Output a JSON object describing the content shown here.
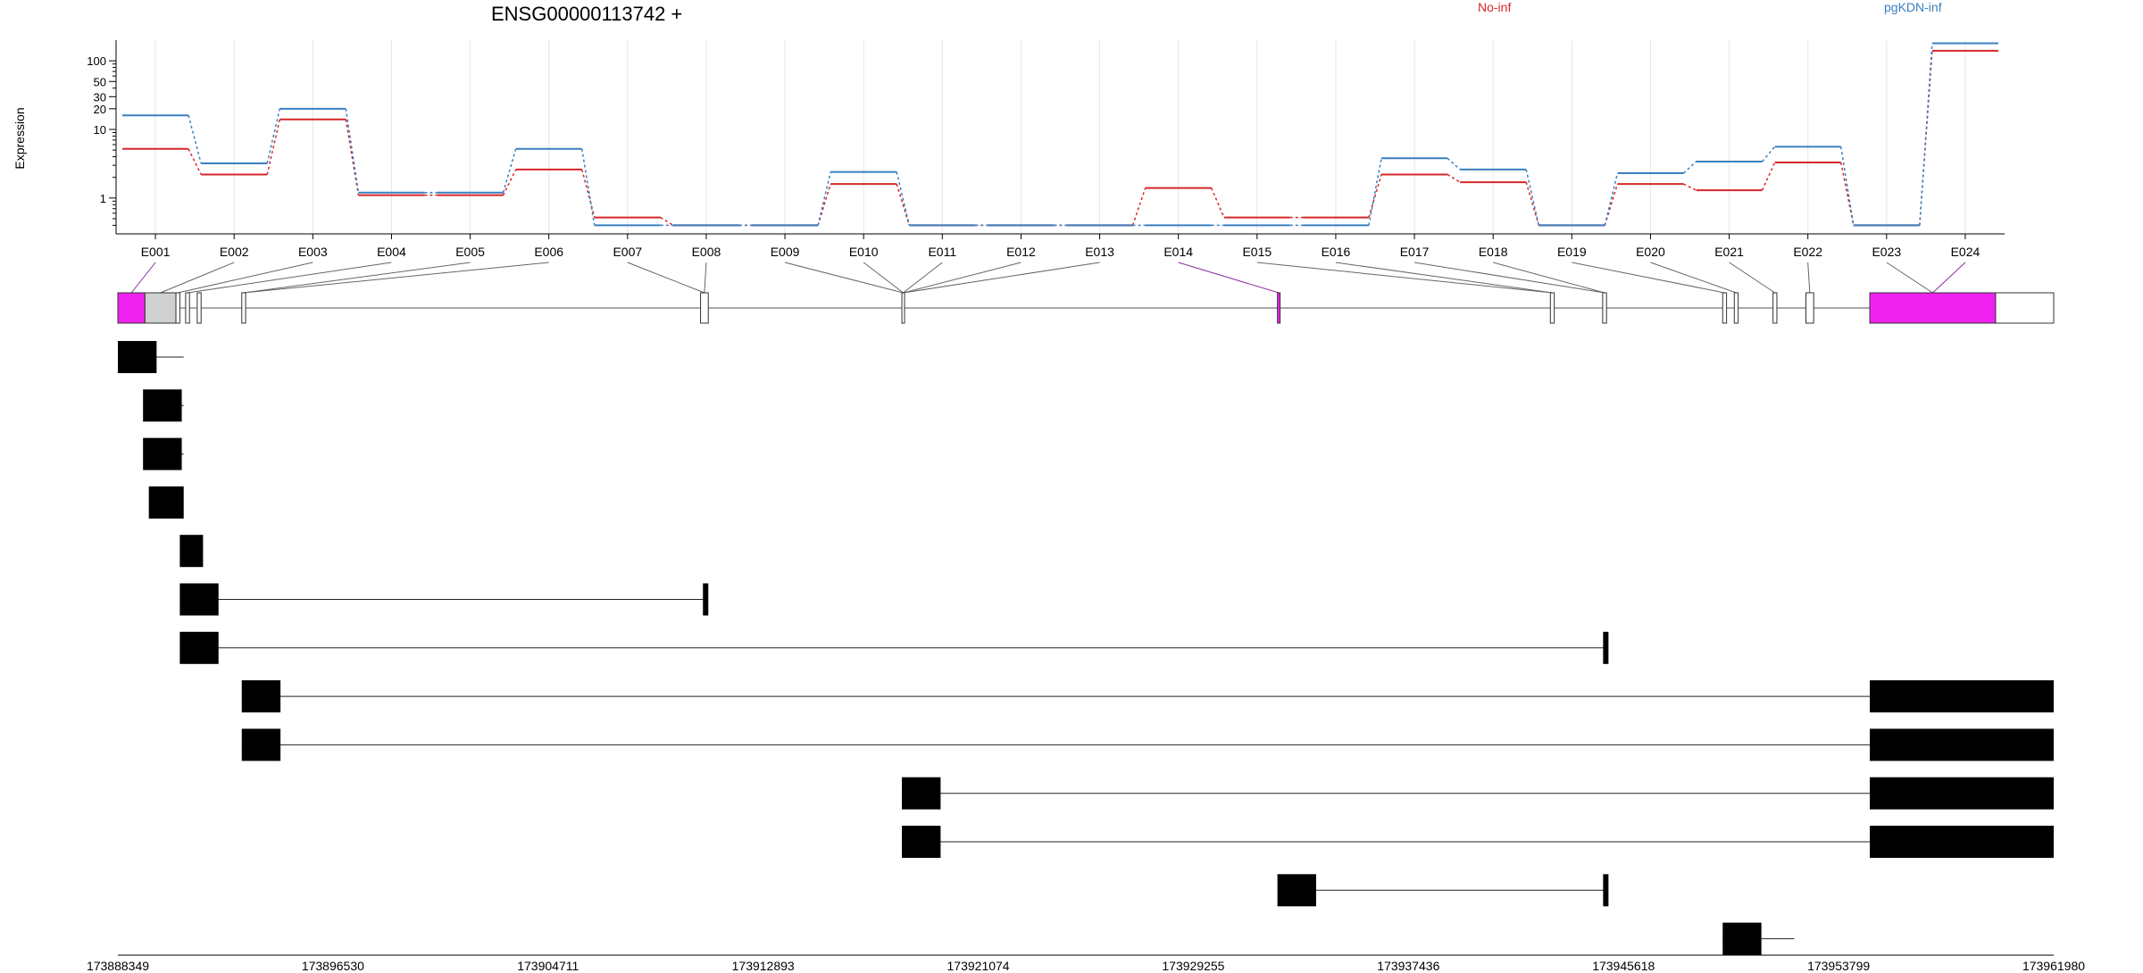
{
  "chart_data": {
    "type": "line",
    "title": "ENSG00000113742 +",
    "ylabel": "Expression",
    "xlabel": "",
    "y_scale": "log",
    "ylim": [
      0.3,
      200
    ],
    "y_ticks": [
      "1",
      "10",
      "20",
      "30",
      "50",
      "100"
    ],
    "grid": "vertical",
    "legend_position": "top-right",
    "colors": {
      "No-inf": "#d62728",
      "pgKDN-inf": "#3a7fc1"
    },
    "categories": [
      "E001",
      "E002",
      "E003",
      "E004",
      "E005",
      "E006",
      "E007",
      "E008",
      "E009",
      "E010",
      "E011",
      "E012",
      "E013",
      "E014",
      "E015",
      "E016",
      "E017",
      "E018",
      "E019",
      "E020",
      "E021",
      "E022",
      "E023",
      "E024"
    ],
    "series": [
      {
        "name": "No-inf",
        "values": [
          5.2,
          2.2,
          14.0,
          1.1,
          1.1,
          2.6,
          0.52,
          0.4,
          0.4,
          1.6,
          0.4,
          0.4,
          0.4,
          1.4,
          0.52,
          0.52,
          2.2,
          1.7,
          0.4,
          1.6,
          1.3,
          3.3,
          0.4,
          140
        ]
      },
      {
        "name": "pgKDN-inf",
        "values": [
          16.0,
          3.2,
          20.0,
          1.2,
          1.2,
          5.2,
          0.4,
          0.4,
          0.4,
          2.4,
          0.4,
          0.4,
          0.4,
          0.4,
          0.4,
          0.4,
          3.8,
          2.6,
          0.4,
          2.3,
          3.4,
          5.6,
          0.4,
          180
        ]
      }
    ],
    "genomic_coordinates": [
      "173888349",
      "173896530",
      "173904711",
      "173912893",
      "173921074",
      "173929255",
      "173937436",
      "173945618",
      "173953799",
      "173961980"
    ],
    "gene_model": {
      "exon_fill": "#d0d0d0",
      "highlight_fill": "#ee22ee",
      "highlighted_exons": [
        "E001",
        "E014",
        "E024"
      ]
    },
    "transcript_count": 14
  }
}
